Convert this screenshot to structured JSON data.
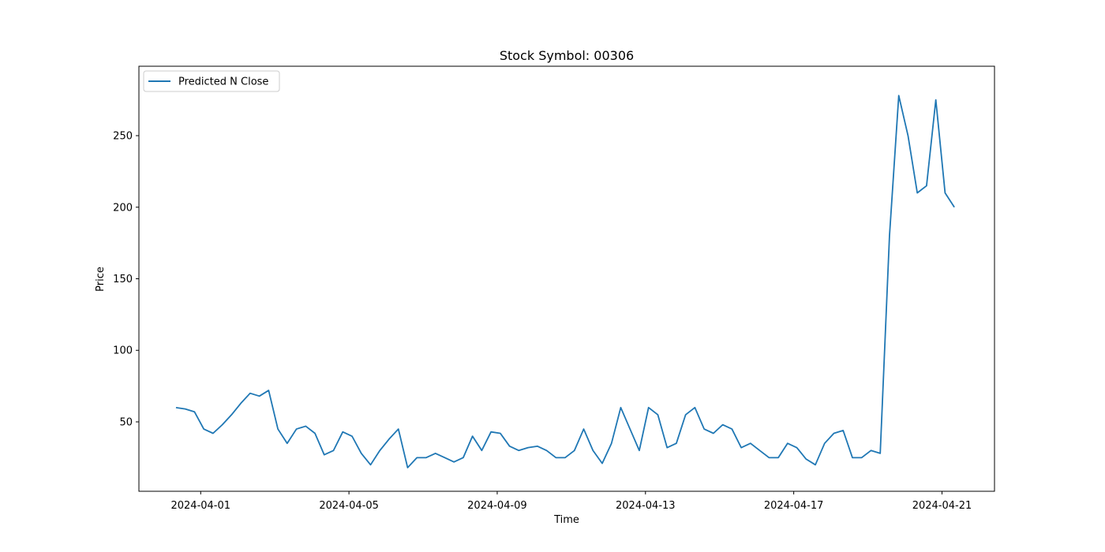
{
  "chart_data": {
    "type": "line",
    "title": "Stock Symbol: 00306",
    "xlabel": "Time",
    "ylabel": "Price",
    "x": [
      "2024-03-31T08:00",
      "2024-03-31T14:00",
      "2024-03-31T20:00",
      "2024-04-01T02:00",
      "2024-04-01T08:00",
      "2024-04-01T14:00",
      "2024-04-01T20:00",
      "2024-04-02T02:00",
      "2024-04-02T08:00",
      "2024-04-02T14:00",
      "2024-04-02T20:00",
      "2024-04-03T02:00",
      "2024-04-03T08:00",
      "2024-04-03T14:00",
      "2024-04-03T20:00",
      "2024-04-04T02:00",
      "2024-04-04T08:00",
      "2024-04-04T14:00",
      "2024-04-04T20:00",
      "2024-04-05T02:00",
      "2024-04-05T08:00",
      "2024-04-05T14:00",
      "2024-04-05T20:00",
      "2024-04-06T02:00",
      "2024-04-06T08:00",
      "2024-04-06T14:00",
      "2024-04-06T20:00",
      "2024-04-07T02:00",
      "2024-04-07T08:00",
      "2024-04-07T14:00",
      "2024-04-07T20:00",
      "2024-04-08T02:00",
      "2024-04-08T08:00",
      "2024-04-08T14:00",
      "2024-04-08T20:00",
      "2024-04-09T02:00",
      "2024-04-09T08:00",
      "2024-04-09T14:00",
      "2024-04-09T20:00",
      "2024-04-10T02:00",
      "2024-04-10T08:00",
      "2024-04-10T14:00",
      "2024-04-10T20:00",
      "2024-04-11T02:00",
      "2024-04-11T08:00",
      "2024-04-11T14:00",
      "2024-04-11T20:00",
      "2024-04-12T02:00",
      "2024-04-12T08:00",
      "2024-04-12T14:00",
      "2024-04-12T20:00",
      "2024-04-13T02:00",
      "2024-04-13T08:00",
      "2024-04-13T14:00",
      "2024-04-13T20:00",
      "2024-04-14T02:00",
      "2024-04-14T08:00",
      "2024-04-14T14:00",
      "2024-04-14T20:00",
      "2024-04-15T02:00",
      "2024-04-15T08:00",
      "2024-04-15T14:00",
      "2024-04-15T20:00",
      "2024-04-16T02:00",
      "2024-04-16T08:00",
      "2024-04-16T14:00",
      "2024-04-16T20:00",
      "2024-04-17T02:00",
      "2024-04-17T08:00",
      "2024-04-17T14:00",
      "2024-04-17T20:00",
      "2024-04-18T02:00",
      "2024-04-18T08:00",
      "2024-04-18T14:00",
      "2024-04-18T20:00",
      "2024-04-19T02:00",
      "2024-04-19T08:00",
      "2024-04-19T14:00",
      "2024-04-19T20:00",
      "2024-04-20T02:00",
      "2024-04-20T08:00",
      "2024-04-20T14:00",
      "2024-04-20T20:00",
      "2024-04-21T02:00",
      "2024-04-21T08:00"
    ],
    "series": [
      {
        "name": "Predicted N Close",
        "color": "#1f77b4",
        "values": [
          60,
          59,
          57,
          45,
          42,
          48,
          55,
          63,
          70,
          68,
          72,
          45,
          35,
          45,
          47,
          42,
          27,
          30,
          43,
          40,
          28,
          20,
          30,
          38,
          45,
          18,
          25,
          25,
          28,
          25,
          22,
          25,
          40,
          30,
          43,
          42,
          33,
          30,
          32,
          33,
          30,
          25,
          25,
          30,
          45,
          30,
          21,
          35,
          60,
          45,
          30,
          60,
          55,
          32,
          35,
          55,
          60,
          45,
          42,
          48,
          45,
          32,
          35,
          30,
          25,
          25,
          35,
          32,
          24,
          20,
          35,
          42,
          44,
          25,
          25,
          30,
          28,
          180,
          278,
          250,
          210,
          215,
          275,
          210,
          200
        ]
      }
    ],
    "xlim": [
      "2024-03-30T08:00",
      "2024-04-22T10:00"
    ],
    "xticks": [
      "2024-04-01",
      "2024-04-05",
      "2024-04-09",
      "2024-04-13",
      "2024-04-17",
      "2024-04-21"
    ],
    "ylim": [
      1.5,
      298.5
    ],
    "yticks": [
      50,
      100,
      150,
      200,
      250
    ],
    "legend": "upper left"
  }
}
